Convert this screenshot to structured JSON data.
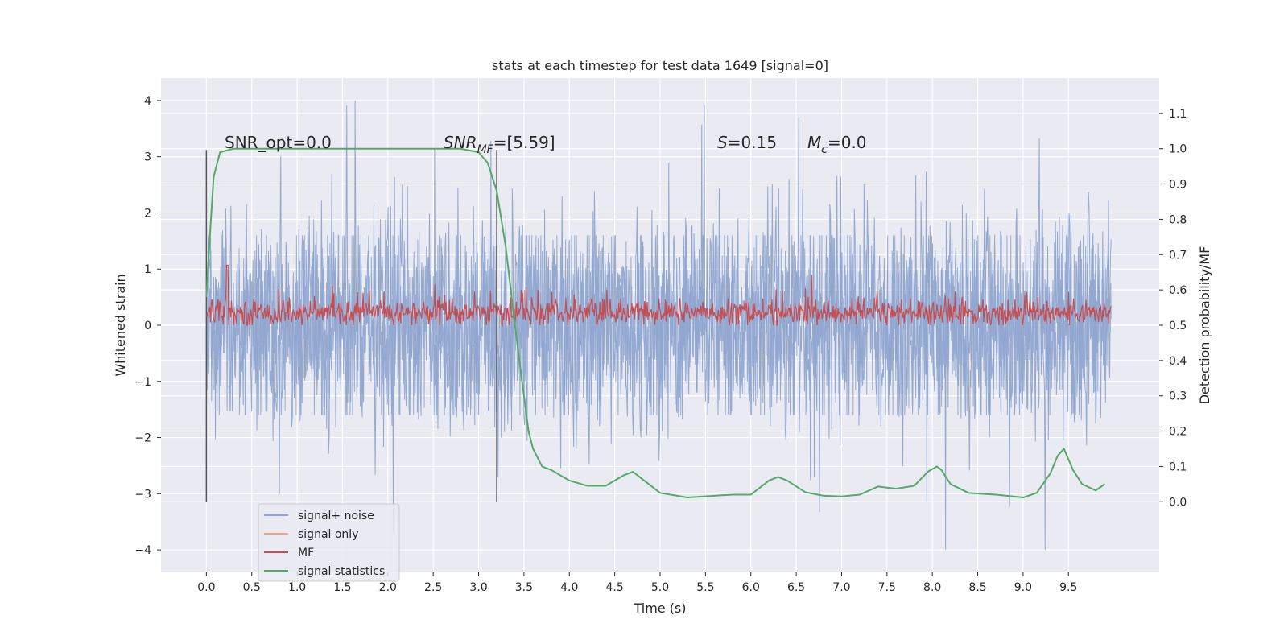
{
  "chart_data": {
    "type": "line",
    "title": "stats at each timestep for test data 1649 [signal=0]",
    "xlabel": "Time (s)",
    "ylabel": "Whitened strain",
    "y2label": "Detection probability/MF",
    "xlim": [
      -0.5,
      10.5
    ],
    "ylim": [
      -4.4,
      4.4
    ],
    "y2lim": [
      -0.2,
      1.2
    ],
    "x_ticks": [
      "0.0",
      "0.5",
      "1.0",
      "1.5",
      "2.0",
      "2.5",
      "3.0",
      "3.5",
      "4.0",
      "4.5",
      "5.0",
      "5.5",
      "6.0",
      "6.5",
      "7.0",
      "7.5",
      "8.0",
      "8.5",
      "9.0",
      "9.5"
    ],
    "y_ticks": [
      "4",
      "3",
      "2",
      "1",
      "0",
      "−1",
      "−2",
      "−3",
      "−4"
    ],
    "y2_ticks": [
      "1.1",
      "1.0",
      "0.9",
      "0.8",
      "0.7",
      "0.6",
      "0.5",
      "0.4",
      "0.3",
      "0.2",
      "0.1",
      "0.0"
    ],
    "grid": true,
    "legend_position": "lower-left",
    "colors": {
      "noise": "#8fa5cf",
      "signal_only": "#e8a68b",
      "mf": "#c44e52",
      "statistics": "#55a868",
      "background": "#eaeaf2",
      "marker": "#555555"
    },
    "annotations": {
      "snr_opt": "SNR_opt=0.0",
      "snr_mf_main": "SNR",
      "snr_mf_sub": "MF",
      "snr_mf_rest": "=[5.59]",
      "s_main": "S",
      "s_rest": "=0.15",
      "mc_main": "M",
      "mc_sub": "c",
      "mc_rest": "=0.0"
    },
    "vertical_markers": [
      0.0,
      3.2
    ],
    "series": [
      {
        "name": "signal+ noise",
        "x_range": [
          0.0,
          9.97
        ],
        "y_range": [
          -4.0,
          4.0
        ]
      },
      {
        "name": "signal only",
        "values": []
      },
      {
        "name": "MF",
        "x_range": [
          0.0,
          9.97
        ],
        "y2_range": [
          0.5,
          0.67
        ]
      },
      {
        "name": "signal statistics",
        "x": [
          0.0,
          0.05,
          0.08,
          0.15,
          0.3,
          0.6,
          1.0,
          1.5,
          2.0,
          2.5,
          2.8,
          3.0,
          3.1,
          3.2,
          3.3,
          3.4,
          3.5,
          3.55,
          3.6,
          3.7,
          3.8,
          4.0,
          4.2,
          4.4,
          4.6,
          4.7,
          4.8,
          5.0,
          5.3,
          5.6,
          5.8,
          6.0,
          6.2,
          6.3,
          6.4,
          6.6,
          6.8,
          7.0,
          7.2,
          7.4,
          7.6,
          7.8,
          7.95,
          8.05,
          8.1,
          8.2,
          8.4,
          8.7,
          9.0,
          9.15,
          9.3,
          9.38,
          9.45,
          9.55,
          9.65,
          9.8,
          9.9
        ],
        "values": [
          0.58,
          0.8,
          0.92,
          0.99,
          1.0,
          1.0,
          1.0,
          1.0,
          1.0,
          1.0,
          1.0,
          0.99,
          0.96,
          0.88,
          0.72,
          0.5,
          0.3,
          0.2,
          0.15,
          0.1,
          0.09,
          0.06,
          0.045,
          0.045,
          0.075,
          0.085,
          0.065,
          0.025,
          0.012,
          0.017,
          0.02,
          0.02,
          0.06,
          0.07,
          0.06,
          0.027,
          0.017,
          0.015,
          0.02,
          0.043,
          0.037,
          0.045,
          0.085,
          0.1,
          0.09,
          0.05,
          0.025,
          0.02,
          0.012,
          0.025,
          0.08,
          0.13,
          0.15,
          0.09,
          0.05,
          0.032,
          0.05
        ]
      }
    ]
  }
}
